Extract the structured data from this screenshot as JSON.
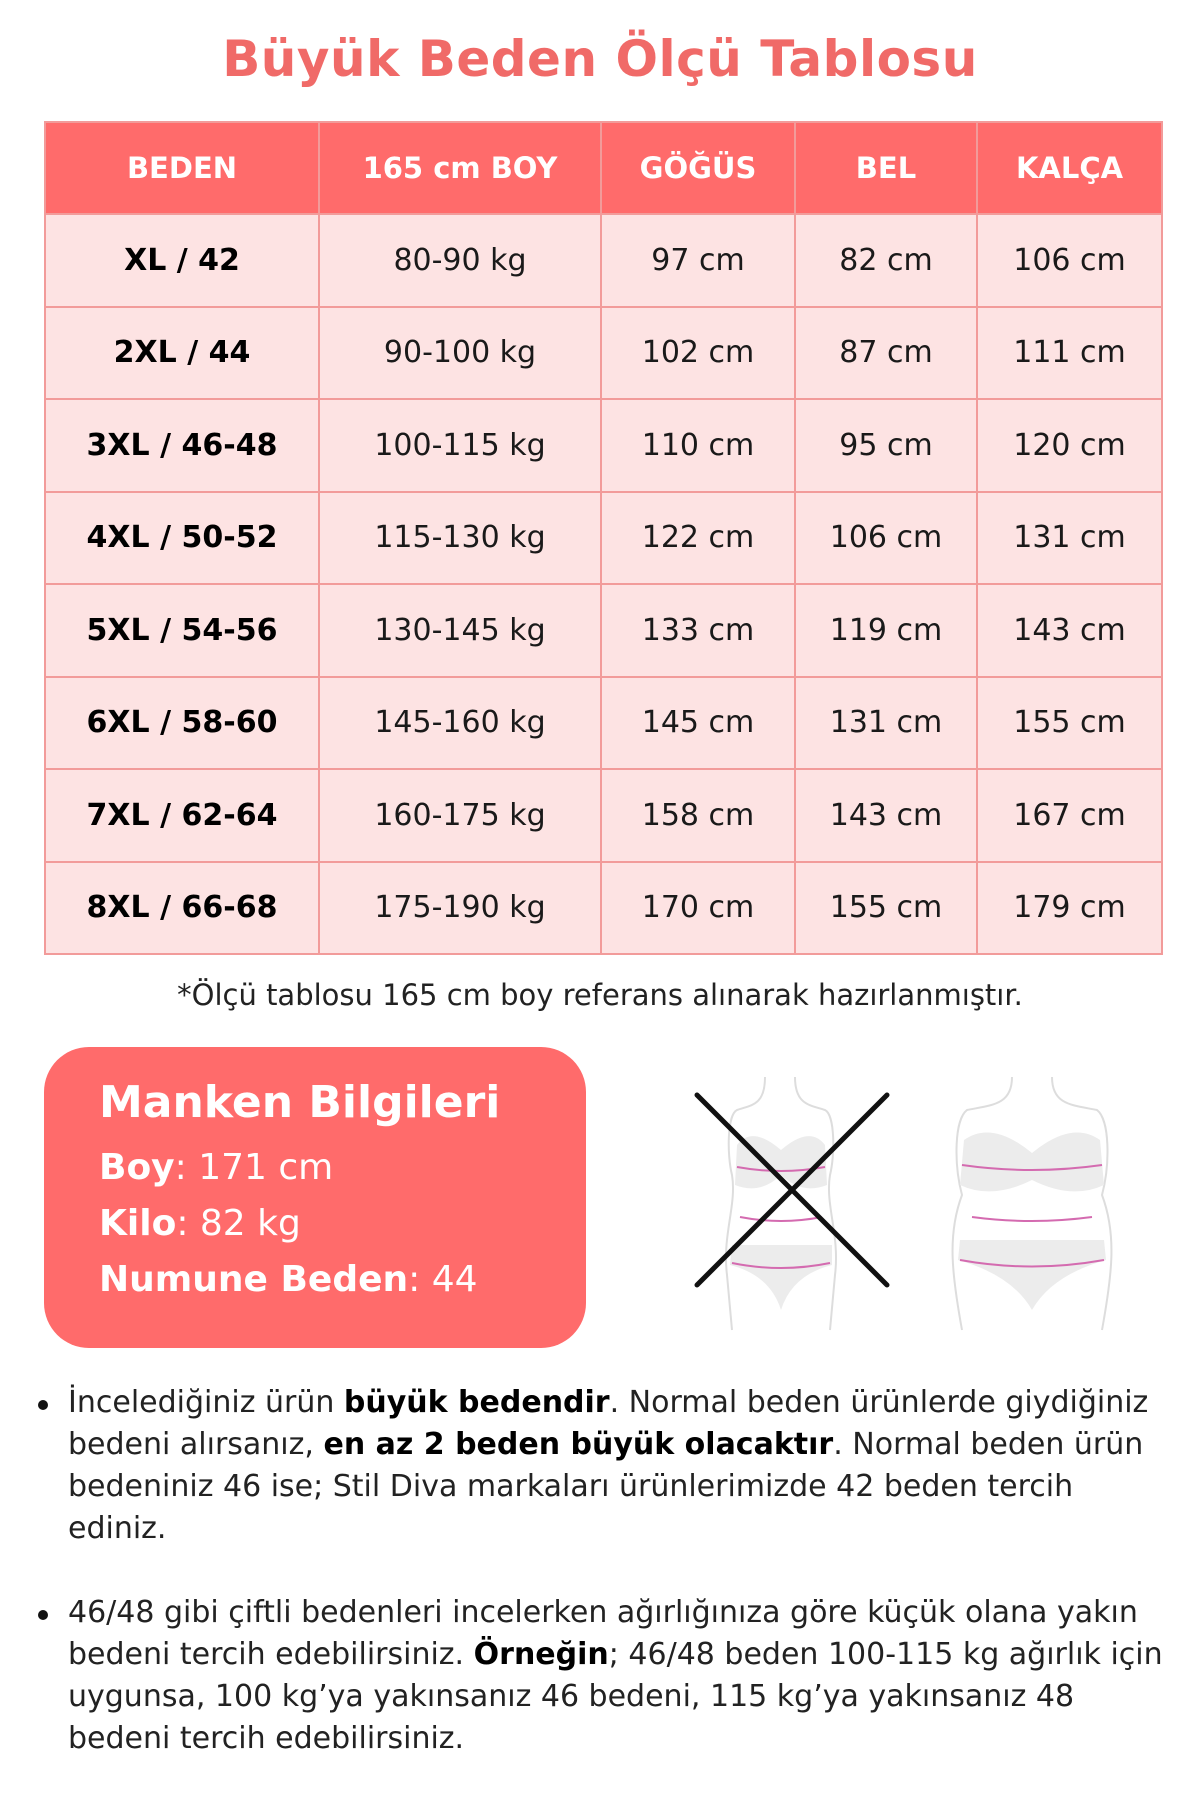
{
  "title": "Büyük Beden Ölçü Tablosu",
  "table": {
    "headers": [
      "BEDEN",
      "165 cm BOY",
      "GÖĞÜS",
      "BEL",
      "KALÇA"
    ],
    "rows": [
      [
        "XL / 42",
        "80-90 kg",
        "97 cm",
        "82 cm",
        "106 cm"
      ],
      [
        "2XL / 44",
        "90-100 kg",
        "102 cm",
        "87 cm",
        "111 cm"
      ],
      [
        "3XL / 46-48",
        "100-115 kg",
        "110 cm",
        "95 cm",
        "120 cm"
      ],
      [
        "4XL / 50-52",
        "115-130 kg",
        "122 cm",
        "106 cm",
        "131 cm"
      ],
      [
        "5XL / 54-56",
        "130-145 kg",
        "133 cm",
        "119 cm",
        "143 cm"
      ],
      [
        "6XL / 58-60",
        "145-160 kg",
        "145 cm",
        "131 cm",
        "155 cm"
      ],
      [
        "7XL / 62-64",
        "160-175 kg",
        "158 cm",
        "143 cm",
        "167 cm"
      ],
      [
        "8XL / 66-68",
        "175-190 kg",
        "170 cm",
        "155 cm",
        "179 cm"
      ]
    ]
  },
  "note": "*Ölçü tablosu 165 cm boy referans alınarak hazırlanmıştır.",
  "manken": {
    "title": "Manken Bilgileri",
    "boy_label": "Boy",
    "boy_value": ": 171 cm",
    "kilo_label": "Kilo",
    "kilo_value": ": 82 kg",
    "beden_label": "Numune Beden",
    "beden_value": ": 44"
  },
  "bullets": [
    {
      "t1": "İncelediğiniz ürün ",
      "b1": "büyük bedendir",
      "t2": ". Normal beden ürünlerde giydiğiniz bedeni alırsanız, ",
      "b2": "en az 2 beden büyük olacaktır",
      "t3": ". Normal beden ürün bedeniniz 46 ise; Stil Diva markaları ürünlerimizde 42 beden tercih ediniz."
    },
    {
      "t1": "46/48 gibi çiftli bedenleri incelerken ağırlığınıza göre küçük olana yakın bedeni tercih edebilirsiniz. ",
      "b1": "Örneğin",
      "t2": "; 46/48 beden 100-115 kg ağırlık için uygunsa, 100 kg’ya yakınsanız 46 bedeni, 115 kg’ya yakınsanız 48 bedeni tercih edebilirsiniz."
    }
  ],
  "colors": {
    "accent": "#ff6b6b",
    "title": "#f06a68",
    "row_bg": "#fde3e3",
    "border": "#f29b9a"
  }
}
